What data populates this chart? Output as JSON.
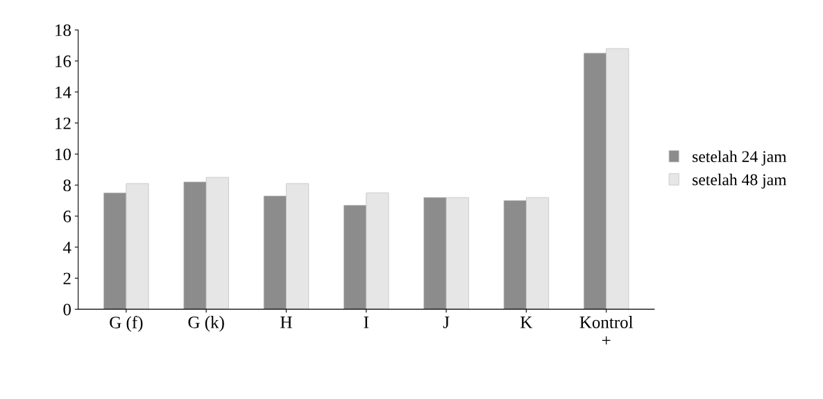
{
  "chart_data": {
    "type": "bar",
    "categories": [
      "G (f)",
      "G (k)",
      "H",
      "I",
      "J",
      "K",
      "Kontrol\n+"
    ],
    "series": [
      {
        "name": "setelah 24 jam",
        "color": "#8c8c8c",
        "values": [
          7.5,
          8.2,
          7.3,
          6.7,
          7.2,
          7.0,
          16.5
        ]
      },
      {
        "name": "setelah 48 jam",
        "color": "#e6e6e6",
        "values": [
          8.1,
          8.5,
          8.1,
          7.5,
          7.2,
          7.2,
          16.8
        ]
      }
    ],
    "ylim": [
      0,
      18
    ],
    "yticks": [
      0,
      2,
      4,
      6,
      8,
      10,
      12,
      14,
      16,
      18
    ],
    "grid": false,
    "legend": "right"
  }
}
